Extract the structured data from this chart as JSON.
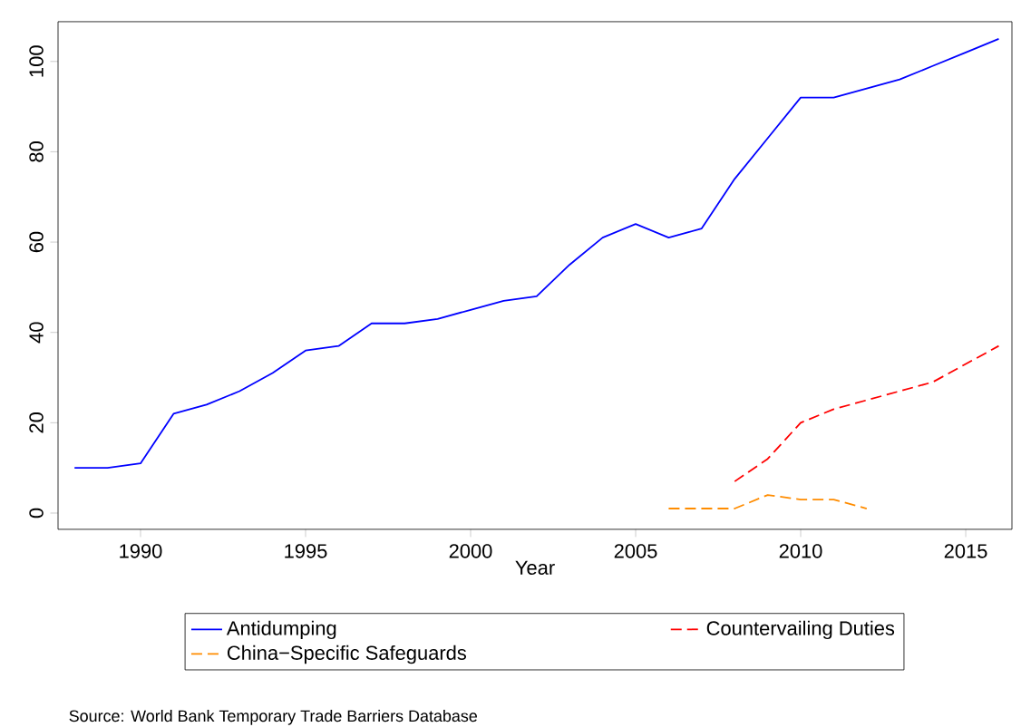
{
  "chart_data": {
    "type": "line",
    "xlabel": "Year",
    "xlim": [
      1987.5,
      2016.4
    ],
    "ylim": [
      -3.6,
      108.8
    ],
    "xticks": [
      1990,
      1995,
      2000,
      2005,
      2010,
      2015
    ],
    "yticks": [
      0,
      20,
      40,
      60,
      80,
      100
    ],
    "grid": false,
    "legend": "bottom",
    "marker": "none",
    "annotations": [
      "Source: World Bank Temporary Trade Barriers Database"
    ],
    "series": [
      {
        "name": "Antidumping",
        "color": "#0000ff",
        "line_style": "solid",
        "x": [
          1988,
          1989,
          1990,
          1991,
          1992,
          1993,
          1994,
          1995,
          1996,
          1997,
          1998,
          1999,
          2000,
          2001,
          2002,
          2003,
          2004,
          2005,
          2006,
          2007,
          2008,
          2009,
          2010,
          2011,
          2012,
          2013,
          2014,
          2015,
          2016
        ],
        "values": [
          10,
          10,
          11,
          22,
          24,
          27,
          31,
          36,
          37,
          42,
          42,
          43,
          45,
          47,
          48,
          55,
          61,
          64,
          61,
          63,
          74,
          83,
          92,
          92,
          94,
          96,
          99,
          102,
          105
        ]
      },
      {
        "name": "Countervailing Duties",
        "color": "#ff0000",
        "line_style": "dashed",
        "x": [
          2008,
          2009,
          2010,
          2011,
          2012,
          2013,
          2014,
          2015,
          2016
        ],
        "values": [
          7,
          12,
          20,
          23,
          25,
          27,
          29,
          33,
          37
        ]
      },
      {
        "name": "China−Specific Safeguards",
        "color": "#ff8c00",
        "line_style": "dashed",
        "x": [
          2006,
          2007,
          2008,
          2009,
          2010,
          2011,
          2012
        ],
        "values": [
          1,
          1,
          1,
          4,
          3,
          3,
          1
        ]
      }
    ]
  }
}
